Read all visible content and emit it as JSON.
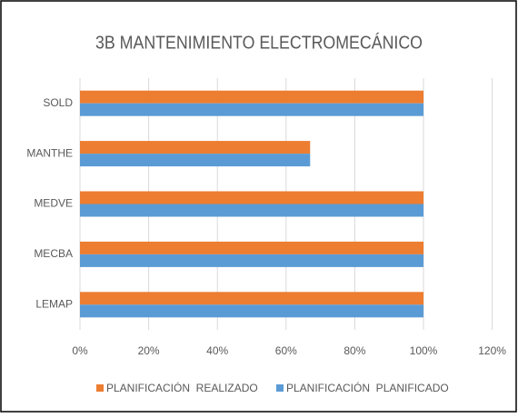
{
  "chart_data": {
    "type": "hbar",
    "title": "3B MANTENIMIENTO ELECTROMECÁNICO",
    "categories": [
      "SOLD",
      "MANTHE",
      "MEDVE",
      "MECBA",
      "LEMAP"
    ],
    "series": [
      {
        "name": "PLANIFICACIÓN  REALIZADO",
        "color": "#ED7D31",
        "values": [
          100,
          67,
          100,
          100,
          100
        ]
      },
      {
        "name": "PLANIFICACIÓN  PLANIFICADO",
        "color": "#5B9BD5",
        "values": [
          100,
          67,
          100,
          100,
          100
        ]
      }
    ],
    "xlim": [
      0,
      120
    ],
    "xticks": [
      {
        "value": 0,
        "label": "0%"
      },
      {
        "value": 20,
        "label": "20%"
      },
      {
        "value": 40,
        "label": "40%"
      },
      {
        "value": 60,
        "label": "60%"
      },
      {
        "value": 80,
        "label": "80%"
      },
      {
        "value": 100,
        "label": "100%"
      },
      {
        "value": 120,
        "label": "120%"
      }
    ],
    "grid": true,
    "legend": "bottom"
  }
}
